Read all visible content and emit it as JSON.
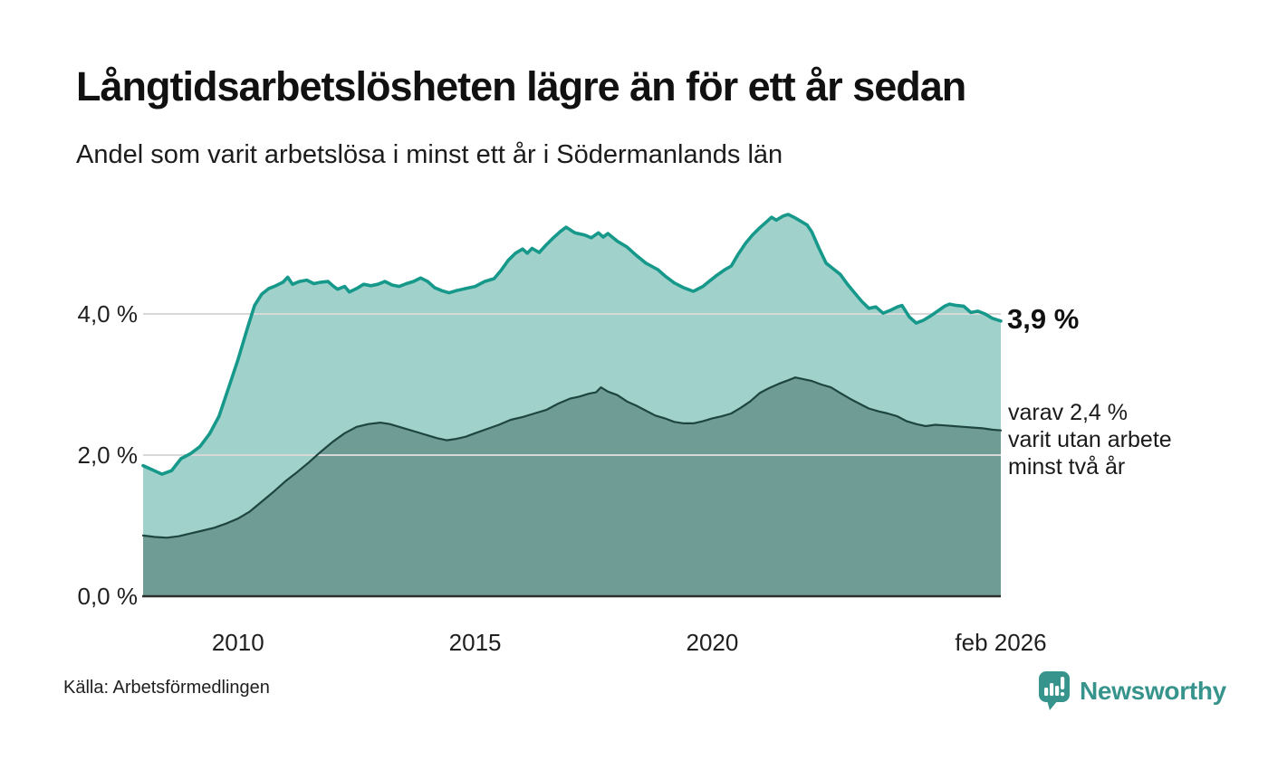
{
  "header": {
    "title": "Långtidsarbetslösheten lägre än för ett år sedan",
    "subtitle": "Andel som varit arbetslösa i minst ett år i Södermanlands län"
  },
  "annotations": {
    "latest_total": "3,9 %",
    "secondary": "varav 2,4 %\nvarit utan arbete\nminst två år"
  },
  "axes": {
    "y_tick_labels": [
      "0,0 %",
      "2,0 %",
      "4,0 %"
    ],
    "x_tick_labels": [
      "2010",
      "2015",
      "2020",
      "feb 2026"
    ]
  },
  "footer": {
    "source": "Källa: Arbetsförmedlingen",
    "brand": "Newsworthy"
  },
  "colors": {
    "total_line": "#16988a",
    "total_fill": "#a0d2cb",
    "two_year_line": "#1f4540",
    "two_year_fill": "#6f9d96",
    "gridline": "#d8d8d8",
    "axis_line": "#2e2e2e",
    "brand_teal": "#37948c",
    "text": "#1a1a1a"
  },
  "chart_data": {
    "type": "area",
    "title": "Långtidsarbetslösheten lägre än för ett år sedan",
    "subtitle": "Andel som varit arbetslösa i minst ett år i Södermanlands län",
    "unit": "%",
    "grid": "horizontal",
    "x_axis": {
      "range": [
        2008.0,
        2026.083
      ],
      "tick_values": [
        2010,
        2015,
        2020,
        2026.083
      ],
      "tick_labels": [
        "2010",
        "2015",
        "2020",
        "feb 2026"
      ]
    },
    "y_axis": {
      "range": [
        0,
        5.6
      ],
      "tick_values": [
        0,
        2,
        4
      ],
      "tick_labels": [
        "0,0 %",
        "2,0 %",
        "4,0 %"
      ]
    },
    "series": [
      {
        "name": "Arbetslösa minst ett år",
        "latest_label": "3,9 %",
        "latest_value": 3.9,
        "color": "#16988a",
        "fill": "#a0d2cb",
        "points": [
          [
            2008.0,
            1.85
          ],
          [
            2008.2,
            1.79
          ],
          [
            2008.4,
            1.73
          ],
          [
            2008.6,
            1.78
          ],
          [
            2008.8,
            1.95
          ],
          [
            2009.0,
            2.02
          ],
          [
            2009.2,
            2.12
          ],
          [
            2009.4,
            2.3
          ],
          [
            2009.6,
            2.55
          ],
          [
            2009.8,
            2.95
          ],
          [
            2010.0,
            3.35
          ],
          [
            2010.2,
            3.8
          ],
          [
            2010.35,
            4.12
          ],
          [
            2010.5,
            4.28
          ],
          [
            2010.65,
            4.36
          ],
          [
            2010.8,
            4.4
          ],
          [
            2010.95,
            4.45
          ],
          [
            2011.05,
            4.52
          ],
          [
            2011.15,
            4.42
          ],
          [
            2011.3,
            4.46
          ],
          [
            2011.45,
            4.48
          ],
          [
            2011.6,
            4.43
          ],
          [
            2011.75,
            4.45
          ],
          [
            2011.9,
            4.46
          ],
          [
            2012.0,
            4.4
          ],
          [
            2012.1,
            4.35
          ],
          [
            2012.25,
            4.39
          ],
          [
            2012.35,
            4.31
          ],
          [
            2012.5,
            4.36
          ],
          [
            2012.65,
            4.42
          ],
          [
            2012.8,
            4.4
          ],
          [
            2012.95,
            4.42
          ],
          [
            2013.1,
            4.46
          ],
          [
            2013.25,
            4.41
          ],
          [
            2013.4,
            4.39
          ],
          [
            2013.55,
            4.43
          ],
          [
            2013.7,
            4.46
          ],
          [
            2013.85,
            4.51
          ],
          [
            2014.0,
            4.46
          ],
          [
            2014.15,
            4.37
          ],
          [
            2014.3,
            4.33
          ],
          [
            2014.45,
            4.3
          ],
          [
            2014.6,
            4.33
          ],
          [
            2014.8,
            4.36
          ],
          [
            2015.0,
            4.39
          ],
          [
            2015.2,
            4.46
          ],
          [
            2015.4,
            4.5
          ],
          [
            2015.55,
            4.62
          ],
          [
            2015.7,
            4.76
          ],
          [
            2015.85,
            4.86
          ],
          [
            2016.0,
            4.92
          ],
          [
            2016.1,
            4.86
          ],
          [
            2016.2,
            4.93
          ],
          [
            2016.35,
            4.87
          ],
          [
            2016.5,
            4.98
          ],
          [
            2016.65,
            5.08
          ],
          [
            2016.8,
            5.17
          ],
          [
            2016.92,
            5.23
          ],
          [
            2017.1,
            5.15
          ],
          [
            2017.3,
            5.12
          ],
          [
            2017.45,
            5.08
          ],
          [
            2017.6,
            5.15
          ],
          [
            2017.7,
            5.09
          ],
          [
            2017.8,
            5.14
          ],
          [
            2018.0,
            5.03
          ],
          [
            2018.2,
            4.95
          ],
          [
            2018.4,
            4.83
          ],
          [
            2018.6,
            4.72
          ],
          [
            2018.85,
            4.63
          ],
          [
            2019.0,
            4.54
          ],
          [
            2019.2,
            4.44
          ],
          [
            2019.4,
            4.37
          ],
          [
            2019.6,
            4.32
          ],
          [
            2019.8,
            4.39
          ],
          [
            2019.95,
            4.47
          ],
          [
            2020.1,
            4.55
          ],
          [
            2020.25,
            4.62
          ],
          [
            2020.4,
            4.68
          ],
          [
            2020.55,
            4.85
          ],
          [
            2020.7,
            5.0
          ],
          [
            2020.85,
            5.12
          ],
          [
            2021.0,
            5.22
          ],
          [
            2021.15,
            5.31
          ],
          [
            2021.25,
            5.37
          ],
          [
            2021.35,
            5.33
          ],
          [
            2021.5,
            5.39
          ],
          [
            2021.6,
            5.41
          ],
          [
            2021.75,
            5.36
          ],
          [
            2021.9,
            5.3
          ],
          [
            2022.0,
            5.26
          ],
          [
            2022.1,
            5.16
          ],
          [
            2022.25,
            4.93
          ],
          [
            2022.4,
            4.72
          ],
          [
            2022.55,
            4.64
          ],
          [
            2022.7,
            4.56
          ],
          [
            2022.85,
            4.42
          ],
          [
            2023.0,
            4.3
          ],
          [
            2023.15,
            4.18
          ],
          [
            2023.3,
            4.08
          ],
          [
            2023.45,
            4.1
          ],
          [
            2023.6,
            4.01
          ],
          [
            2023.75,
            4.05
          ],
          [
            2023.9,
            4.1
          ],
          [
            2024.0,
            4.12
          ],
          [
            2024.15,
            3.96
          ],
          [
            2024.3,
            3.87
          ],
          [
            2024.45,
            3.91
          ],
          [
            2024.6,
            3.97
          ],
          [
            2024.75,
            4.04
          ],
          [
            2024.9,
            4.11
          ],
          [
            2025.0,
            4.14
          ],
          [
            2025.15,
            4.12
          ],
          [
            2025.3,
            4.11
          ],
          [
            2025.45,
            4.02
          ],
          [
            2025.6,
            4.04
          ],
          [
            2025.75,
            4.0
          ],
          [
            2025.9,
            3.94
          ],
          [
            2026.083,
            3.9
          ]
        ]
      },
      {
        "name": "varav utan arbete minst två år",
        "latest_label": "varav 2,4 % varit utan arbete minst två år",
        "latest_value": 2.4,
        "color": "#1f4540",
        "fill": "#6f9d96",
        "points": [
          [
            2008.0,
            0.86
          ],
          [
            2008.25,
            0.84
          ],
          [
            2008.5,
            0.83
          ],
          [
            2008.75,
            0.85
          ],
          [
            2009.0,
            0.89
          ],
          [
            2009.25,
            0.93
          ],
          [
            2009.5,
            0.97
          ],
          [
            2009.75,
            1.03
          ],
          [
            2010.0,
            1.1
          ],
          [
            2010.25,
            1.2
          ],
          [
            2010.5,
            1.34
          ],
          [
            2010.75,
            1.48
          ],
          [
            2011.0,
            1.63
          ],
          [
            2011.25,
            1.76
          ],
          [
            2011.5,
            1.9
          ],
          [
            2011.75,
            2.05
          ],
          [
            2012.0,
            2.19
          ],
          [
            2012.25,
            2.31
          ],
          [
            2012.5,
            2.4
          ],
          [
            2012.75,
            2.44
          ],
          [
            2013.0,
            2.46
          ],
          [
            2013.2,
            2.44
          ],
          [
            2013.4,
            2.4
          ],
          [
            2013.6,
            2.36
          ],
          [
            2013.8,
            2.32
          ],
          [
            2014.0,
            2.28
          ],
          [
            2014.2,
            2.24
          ],
          [
            2014.4,
            2.21
          ],
          [
            2014.6,
            2.23
          ],
          [
            2014.8,
            2.26
          ],
          [
            2015.0,
            2.31
          ],
          [
            2015.25,
            2.37
          ],
          [
            2015.5,
            2.43
          ],
          [
            2015.75,
            2.5
          ],
          [
            2016.0,
            2.54
          ],
          [
            2016.25,
            2.59
          ],
          [
            2016.5,
            2.64
          ],
          [
            2016.75,
            2.73
          ],
          [
            2017.0,
            2.8
          ],
          [
            2017.2,
            2.83
          ],
          [
            2017.4,
            2.87
          ],
          [
            2017.55,
            2.89
          ],
          [
            2017.65,
            2.96
          ],
          [
            2017.8,
            2.9
          ],
          [
            2018.0,
            2.85
          ],
          [
            2018.2,
            2.76
          ],
          [
            2018.4,
            2.7
          ],
          [
            2018.6,
            2.63
          ],
          [
            2018.8,
            2.56
          ],
          [
            2019.0,
            2.52
          ],
          [
            2019.2,
            2.47
          ],
          [
            2019.4,
            2.45
          ],
          [
            2019.6,
            2.45
          ],
          [
            2019.8,
            2.48
          ],
          [
            2020.0,
            2.52
          ],
          [
            2020.2,
            2.55
          ],
          [
            2020.4,
            2.59
          ],
          [
            2020.6,
            2.67
          ],
          [
            2020.8,
            2.76
          ],
          [
            2021.0,
            2.88
          ],
          [
            2021.2,
            2.95
          ],
          [
            2021.4,
            3.01
          ],
          [
            2021.6,
            3.06
          ],
          [
            2021.75,
            3.1
          ],
          [
            2021.9,
            3.08
          ],
          [
            2022.1,
            3.05
          ],
          [
            2022.3,
            3.0
          ],
          [
            2022.5,
            2.96
          ],
          [
            2022.7,
            2.88
          ],
          [
            2022.9,
            2.8
          ],
          [
            2023.1,
            2.73
          ],
          [
            2023.3,
            2.66
          ],
          [
            2023.5,
            2.62
          ],
          [
            2023.7,
            2.59
          ],
          [
            2023.9,
            2.55
          ],
          [
            2024.1,
            2.48
          ],
          [
            2024.3,
            2.44
          ],
          [
            2024.5,
            2.41
          ],
          [
            2024.7,
            2.43
          ],
          [
            2024.9,
            2.42
          ],
          [
            2025.1,
            2.41
          ],
          [
            2025.3,
            2.4
          ],
          [
            2025.5,
            2.39
          ],
          [
            2025.7,
            2.38
          ],
          [
            2025.9,
            2.36
          ],
          [
            2026.083,
            2.35
          ]
        ]
      }
    ]
  }
}
